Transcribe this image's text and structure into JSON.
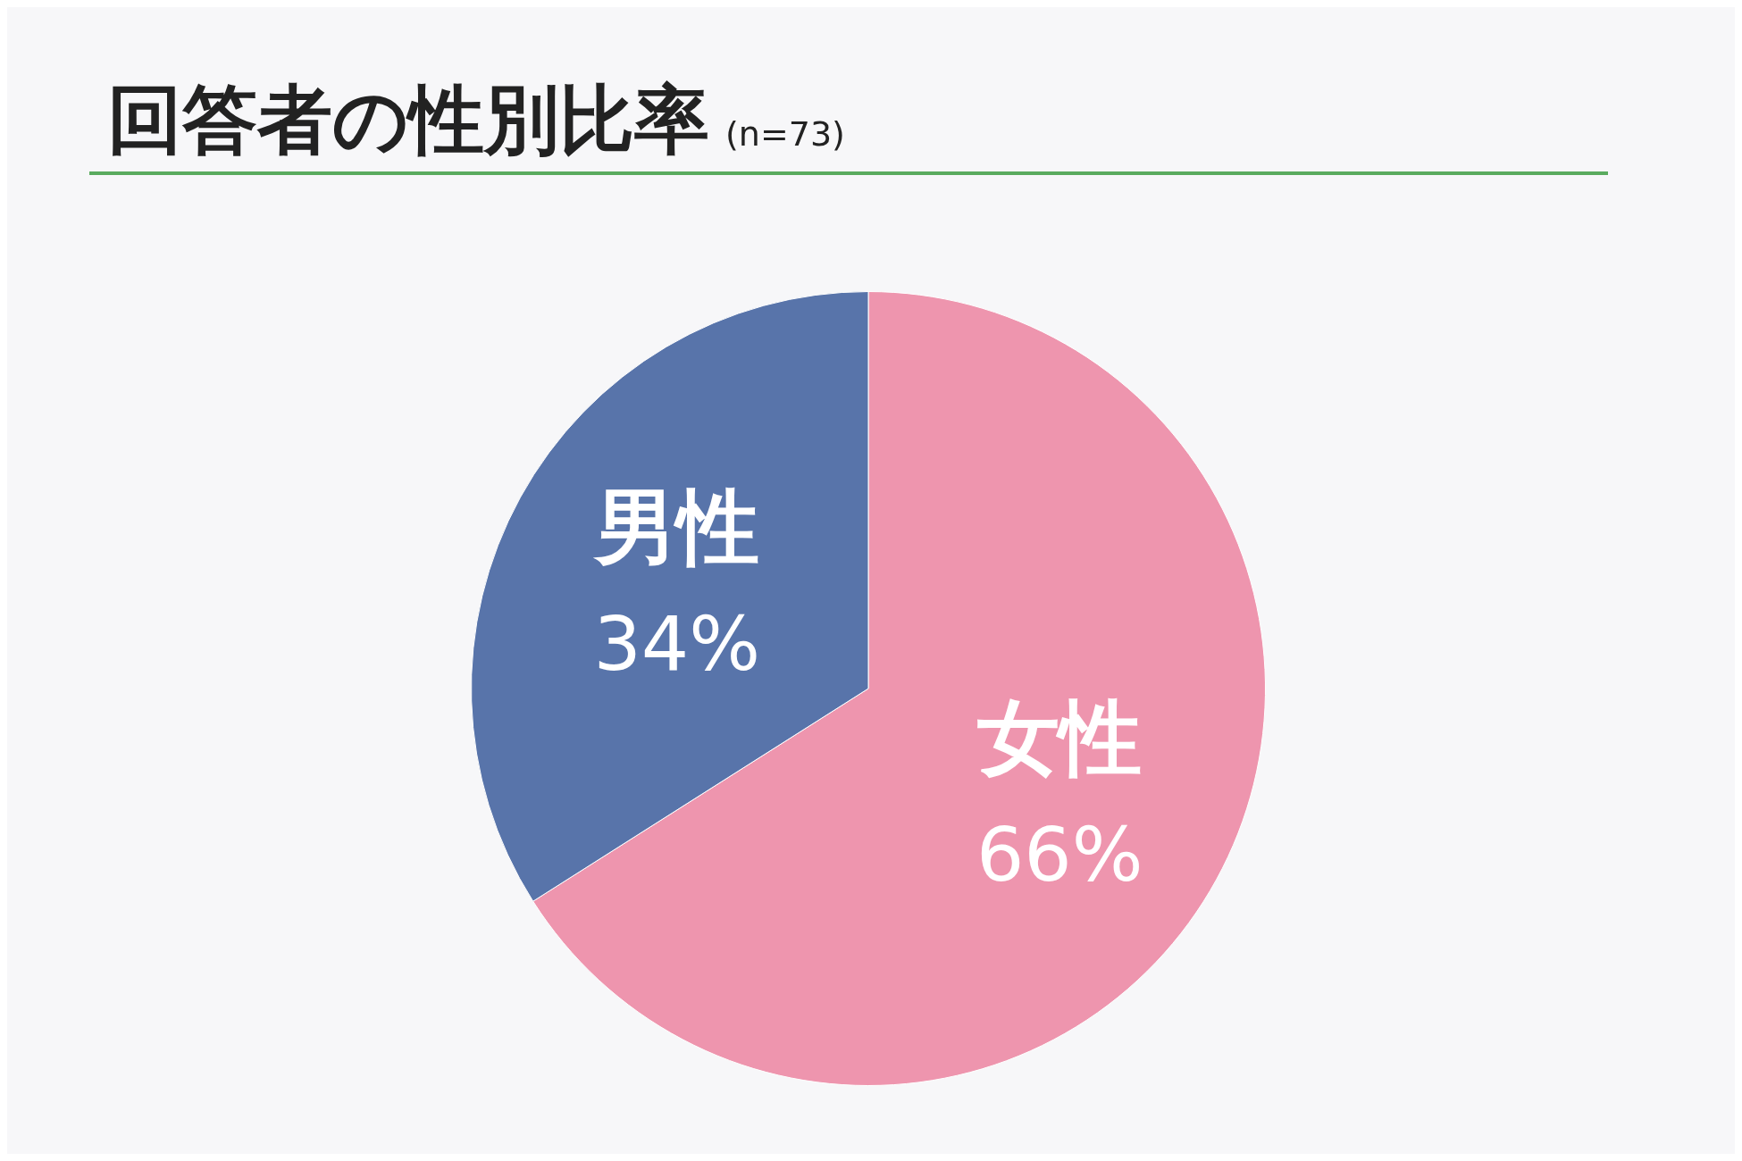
{
  "chart_data": {
    "type": "pie",
    "title": "回答者の性別比率",
    "subtitle": "(n=73)",
    "categories": [
      "女性",
      "男性"
    ],
    "values": [
      66,
      34
    ],
    "colors": [
      "#ee95ae",
      "#5874aa"
    ],
    "value_labels": [
      "66%",
      "34%"
    ],
    "legend": false
  }
}
